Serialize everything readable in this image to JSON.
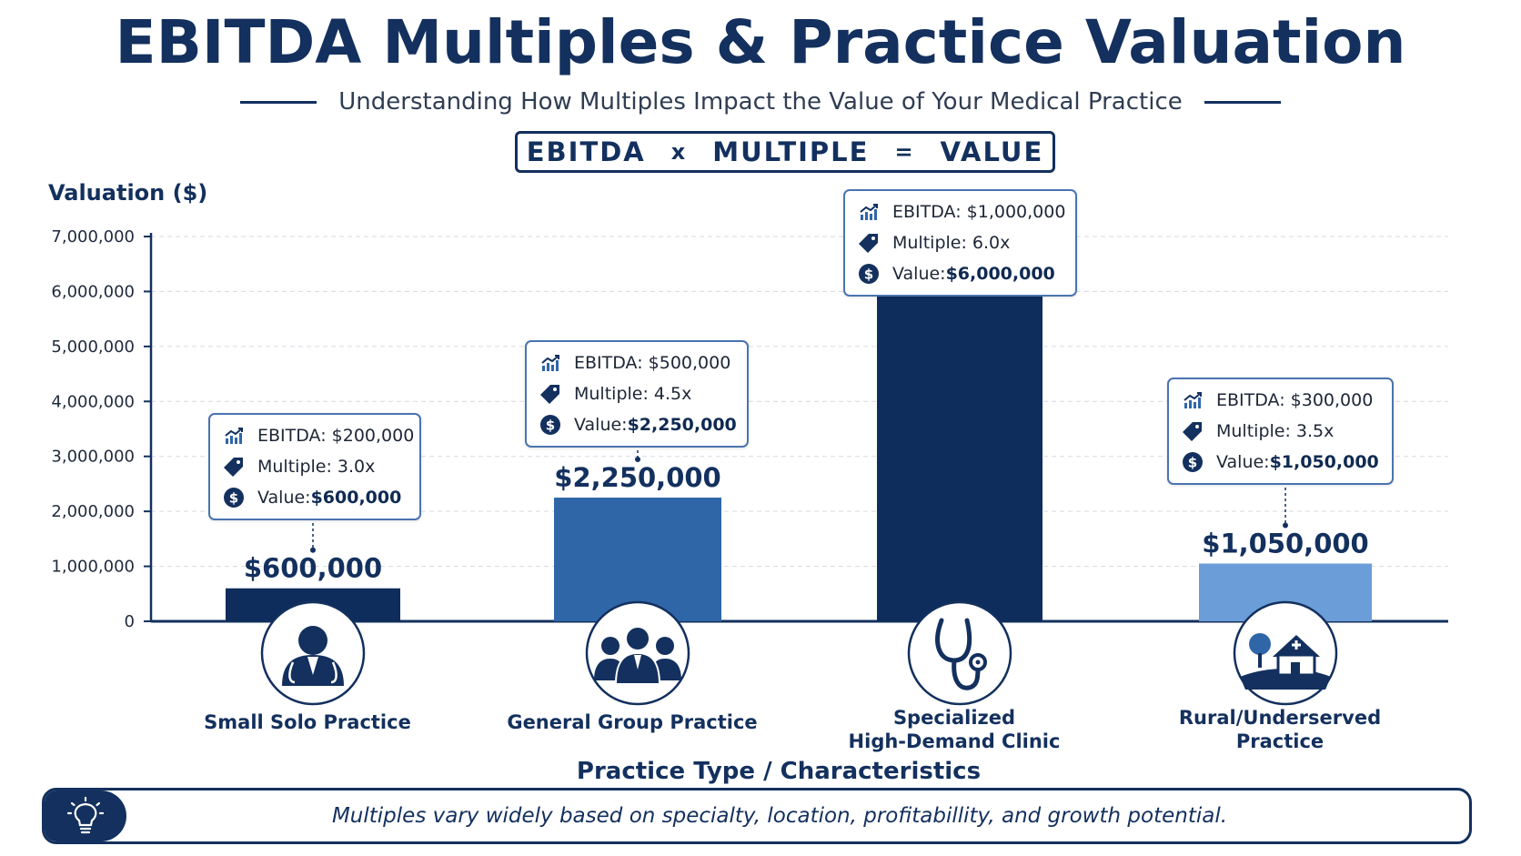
{
  "header": {
    "title": "EBITDA Multiples & Practice Valuation",
    "subtitle": "Understanding How Multiples Impact the Value of Your Medical Practice",
    "formula": {
      "ebitda": "EBITDA",
      "times": "x",
      "multiple": "MULTIPLE",
      "equals": "=",
      "value": "VALUE"
    }
  },
  "chart_data": {
    "type": "bar",
    "ylabel": "Valuation ($)",
    "xlabel": "Practice Type / Characteristics",
    "ylim": [
      0,
      7000000
    ],
    "y_ticks": [
      "0",
      "1,000,000",
      "2,000,000",
      "3,000,000",
      "4,000,000",
      "5,000,000",
      "6,000,000",
      "7,000,000"
    ],
    "grid": true,
    "categories": [
      "Small Solo Practice",
      "General Group Practice",
      "Specialized High-Demand Clinic",
      "Rural/Underserved Practice"
    ],
    "category_lines": [
      [
        "Small Solo Practice"
      ],
      [
        "General Group Practice"
      ],
      [
        "Specialized",
        "High-Demand Clinic"
      ],
      [
        "Rural/Underserved",
        "Practice"
      ]
    ],
    "values": [
      600000,
      2250000,
      6000000,
      1050000
    ],
    "value_labels": [
      "$600,000",
      "$2,250,000",
      "$6,000,000",
      "$1,050,000"
    ],
    "bar_colors": [
      "#0f2d5c",
      "#2f66a8",
      "#0f2d5c",
      "#6b9ed8"
    ],
    "icons": [
      "doctor-icon",
      "group-icon",
      "stethoscope-icon",
      "rural-house-icon"
    ],
    "callouts": [
      {
        "ebitda": "EBITDA: $200,000",
        "multiple": "Multiple: 3.0x",
        "value_prefix": "Value: ",
        "value": "$600,000"
      },
      {
        "ebitda": "EBITDA: $500,000",
        "multiple": "Multiple: 4.5x",
        "value_prefix": "Value: ",
        "value": "$2,250,000"
      },
      {
        "ebitda": "EBITDA: $1,000,000",
        "multiple": "Multiple: 6.0x",
        "value_prefix": "Value: ",
        "value": "$6,000,000"
      },
      {
        "ebitda": "EBITDA: $300,000",
        "multiple": "Multiple: 3.5x",
        "value_prefix": "Value: ",
        "value": "$1,050,000"
      }
    ]
  },
  "footer": {
    "icon": "lightbulb-icon",
    "note": "Multiples vary widely based on specialty, location, profitabillity, and growth potential."
  }
}
